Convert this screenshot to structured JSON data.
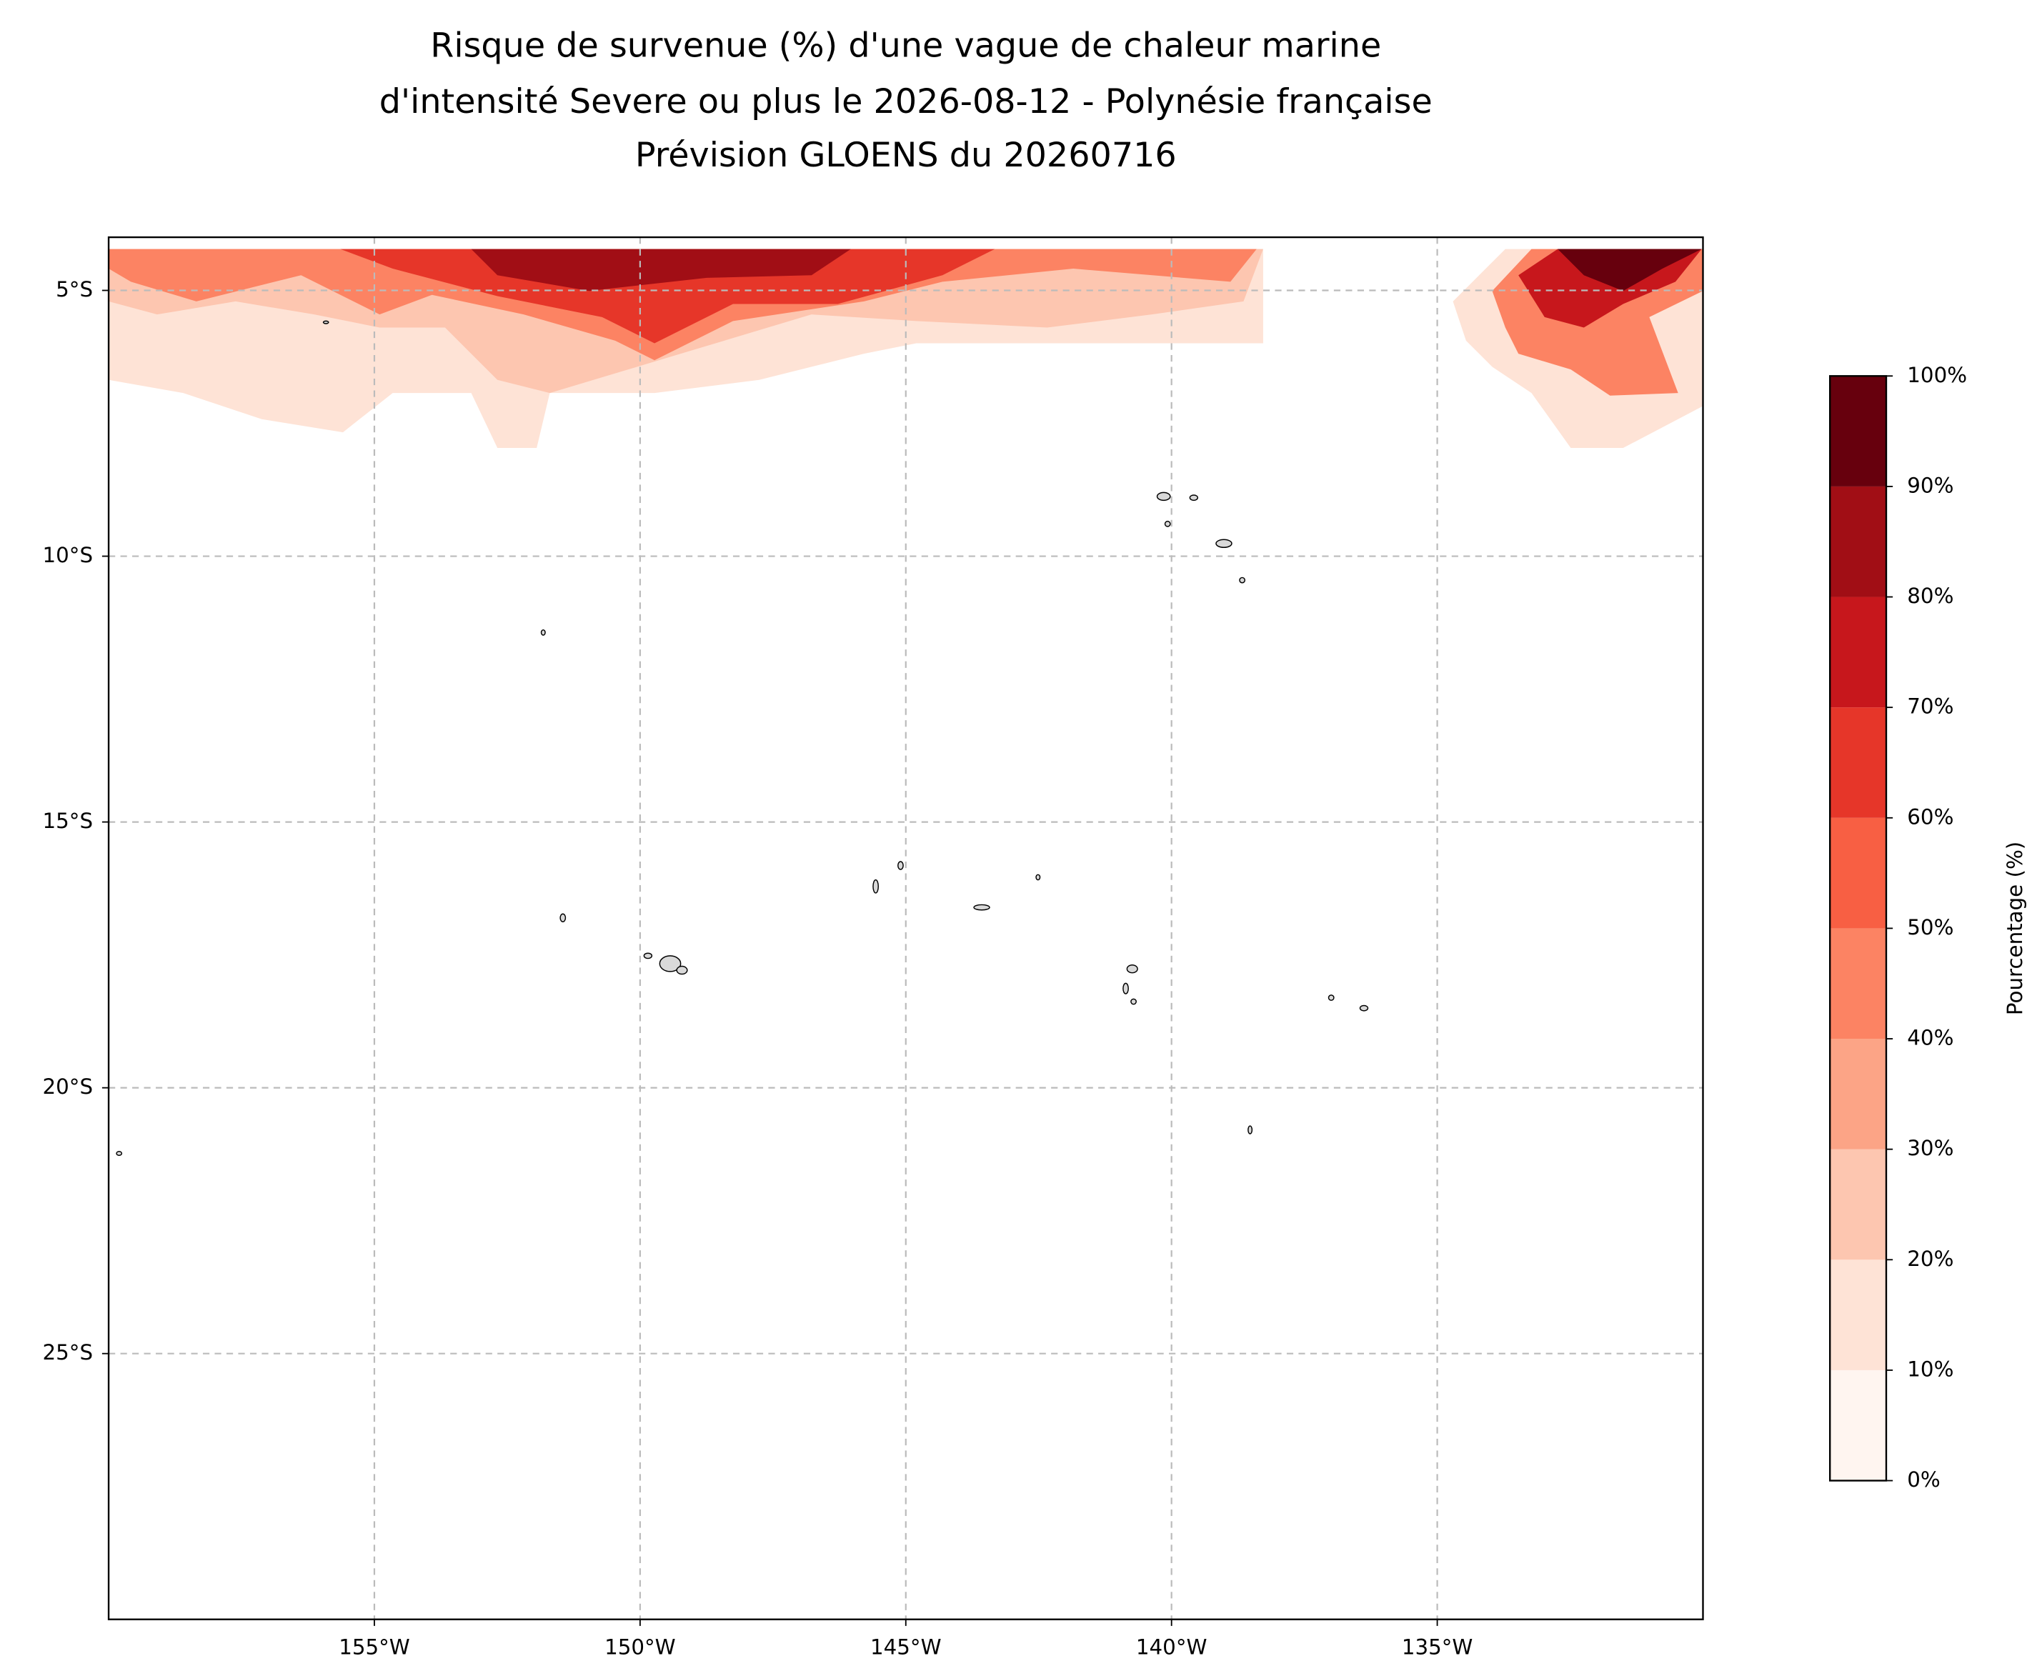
{
  "chart_data": {
    "type": "map",
    "title": [
      "Risque de survenue (%) d'une vague de chaleur marine",
      "d'intensité Severe ou plus le 2026-08-12 - Polynésie française",
      "Prévision GLOENS du 20260716"
    ],
    "xlim": [
      -160,
      -130
    ],
    "ylim": [
      -30,
      -4
    ],
    "xticks": [
      {
        "value": -155,
        "label": "155°W"
      },
      {
        "value": -150,
        "label": "150°W"
      },
      {
        "value": -145,
        "label": "145°W"
      },
      {
        "value": -140,
        "label": "140°W"
      },
      {
        "value": -135,
        "label": "135°W"
      }
    ],
    "yticks": [
      {
        "value": -5,
        "label": "5°S"
      },
      {
        "value": -10,
        "label": "10°S"
      },
      {
        "value": -15,
        "label": "15°S"
      },
      {
        "value": -20,
        "label": "20°S"
      },
      {
        "value": -25,
        "label": "25°S"
      }
    ],
    "grid": true,
    "colorbar": {
      "label": "Pourcentage (%)",
      "ticks": [
        {
          "value": 0,
          "label": "0%"
        },
        {
          "value": 10,
          "label": "10%"
        },
        {
          "value": 20,
          "label": "20%"
        },
        {
          "value": 30,
          "label": "30%"
        },
        {
          "value": 40,
          "label": "40%"
        },
        {
          "value": 50,
          "label": "50%"
        },
        {
          "value": 60,
          "label": "60%"
        },
        {
          "value": 70,
          "label": "70%"
        },
        {
          "value": 80,
          "label": "80%"
        },
        {
          "value": 90,
          "label": "90%"
        },
        {
          "value": 100,
          "label": "100%"
        }
      ],
      "colors": [
        "#fff5f0",
        "#fee3d6",
        "#fdc6b0",
        "#fca486",
        "#fc8363",
        "#f85f43",
        "#e63629",
        "#c7171c",
        "#a10e15",
        "#67000d"
      ]
    }
  }
}
